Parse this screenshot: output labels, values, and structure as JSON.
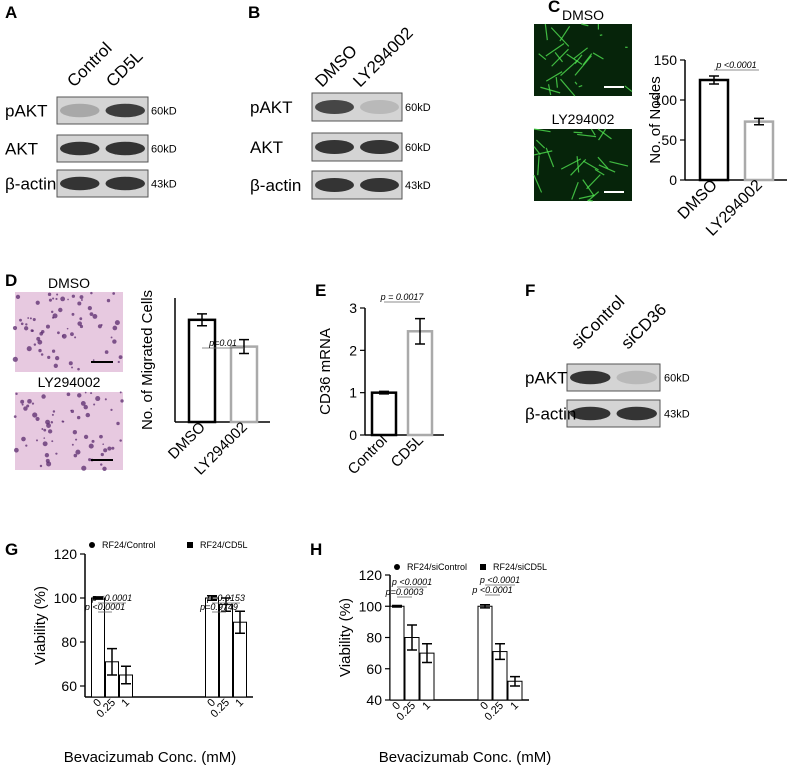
{
  "blots": [
    {
      "letter": "A",
      "lanes": [
        "Control",
        "CD5L"
      ],
      "rows": [
        {
          "label": "pAKT",
          "size": "60kD"
        },
        {
          "label": "AKT",
          "size": "60kD"
        },
        {
          "label": "β-actin",
          "size": "43kD"
        }
      ]
    },
    {
      "letter": "B",
      "lanes": [
        "DMSO",
        "LY294002"
      ],
      "rows": [
        {
          "label": "pAKT",
          "size": "60kD"
        },
        {
          "label": "AKT",
          "size": "60kD"
        },
        {
          "label": "β-actin",
          "size": "43kD"
        }
      ]
    },
    {
      "letter": "F",
      "lanes": [
        "siControl",
        "siCD36"
      ],
      "rows": [
        {
          "label": "pAKT",
          "size": "60kD"
        },
        {
          "label": "β-actin",
          "size": "43kD"
        }
      ]
    }
  ],
  "micrographs": [
    {
      "letter": "C",
      "labels": [
        "DMSO",
        "LY294002"
      ]
    },
    {
      "letter": "D",
      "labels": [
        "DMSO",
        "LY294002"
      ]
    }
  ],
  "chart_data": [
    {
      "type": "bar",
      "y_label": "No. of Nodes",
      "categories": [
        "DMSO",
        "LY294002"
      ],
      "values": [
        125,
        73
      ],
      "errors": [
        5,
        4
      ],
      "colors": [
        "#000000",
        "#aaaaaa"
      ],
      "ylim": [
        0,
        150
      ],
      "yticks": [
        0,
        50,
        100,
        150
      ],
      "annotations": [
        "p <0.0001"
      ]
    },
    {
      "type": "bar",
      "y_label": "No. of Migrated Cells",
      "categories": [
        "DMSO",
        "LY294002"
      ],
      "values": [
        103,
        76
      ],
      "errors": [
        6,
        7
      ],
      "colors": [
        "#000000",
        "#aaaaaa"
      ],
      "ylim": [
        0,
        125
      ],
      "annotations": [
        "p=0.01"
      ]
    },
    {
      "type": "bar",
      "letter": "E",
      "y_label": "CD36 mRNA",
      "categories": [
        "Control",
        "CD5L"
      ],
      "values": [
        1,
        2.45
      ],
      "errors": [
        0.03,
        0.3
      ],
      "colors": [
        "#000000",
        "#aaaaaa"
      ],
      "ylim": [
        0,
        3
      ],
      "yticks": [
        0,
        1,
        2,
        3
      ],
      "annotations": [
        "p = 0.0017"
      ]
    },
    {
      "type": "grouped-bar",
      "letter": "G",
      "y_label": "Viability (%)",
      "x_label": "Bevacizumab Conc. (mM)",
      "categories": [
        "0",
        "0.25",
        "1"
      ],
      "series": [
        {
          "name": "RF24/Control",
          "color": "#000000",
          "values": [
            100,
            71,
            65
          ],
          "errors": [
            0.5,
            6,
            4
          ]
        },
        {
          "name": "RF24/CD5L",
          "color": "#000000",
          "values": [
            100,
            97,
            89
          ],
          "errors": [
            1,
            3,
            5
          ]
        }
      ],
      "ylim": [
        55,
        120
      ],
      "yticks": [
        60,
        80,
        100,
        120
      ],
      "annotations": [
        "p <0.0001",
        "p <0.0001",
        "p=0.0153",
        "p=0.9749"
      ]
    },
    {
      "type": "grouped-bar",
      "letter": "H",
      "y_label": "Viability (%)",
      "x_label": "Bevacizumab Conc. (mM)",
      "categories": [
        "0",
        "0.25",
        "1"
      ],
      "series": [
        {
          "name": "RF24/siControl",
          "color": "#000000",
          "values": [
            100,
            80,
            70
          ],
          "errors": [
            0.5,
            8,
            6
          ]
        },
        {
          "name": "RF24/siCD5L",
          "color": "#000000",
          "values": [
            100,
            71,
            52
          ],
          "errors": [
            1,
            5,
            3
          ]
        }
      ],
      "ylim": [
        40,
        120
      ],
      "yticks": [
        40,
        60,
        80,
        100,
        120
      ],
      "annotations": [
        "p <0.0001",
        "p=0.0003",
        "p <0.0001",
        "p <0.0001"
      ]
    }
  ]
}
